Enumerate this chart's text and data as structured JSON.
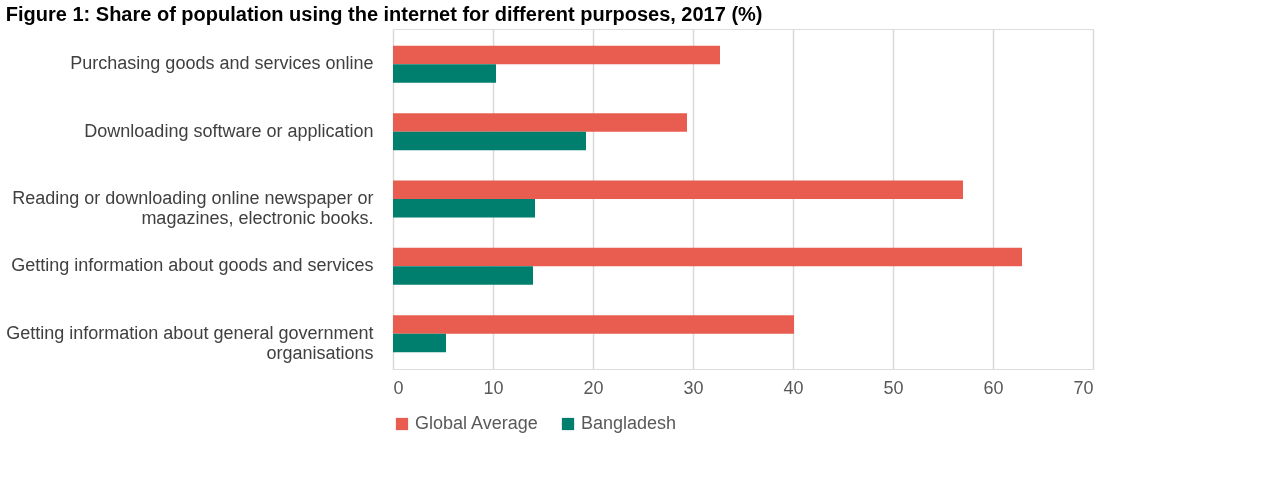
{
  "chart_data": {
    "type": "bar",
    "orientation": "horizontal",
    "title": "Figure 1: Share of population using the internet for different purposes, 2017 (%)",
    "categories": [
      "Purchasing goods and services online",
      "Downloading software or application",
      "Reading or downloading online newspaper or\nmagazines, electronic books.",
      "Getting information about goods and services",
      "Getting information about general government\norganisations"
    ],
    "series": [
      {
        "name": "Global Average",
        "color": "#e85d50",
        "values": [
          32.7,
          29.4,
          57.0,
          62.9,
          40.1
        ]
      },
      {
        "name": "Bangladesh",
        "color": "#007f6e",
        "values": [
          10.3,
          19.3,
          14.2,
          14.0,
          5.3
        ]
      }
    ],
    "xlim": [
      0,
      70
    ],
    "xticks": [
      0,
      10,
      20,
      30,
      40,
      50,
      60,
      70
    ],
    "grid": "x",
    "legend": "bottom"
  }
}
